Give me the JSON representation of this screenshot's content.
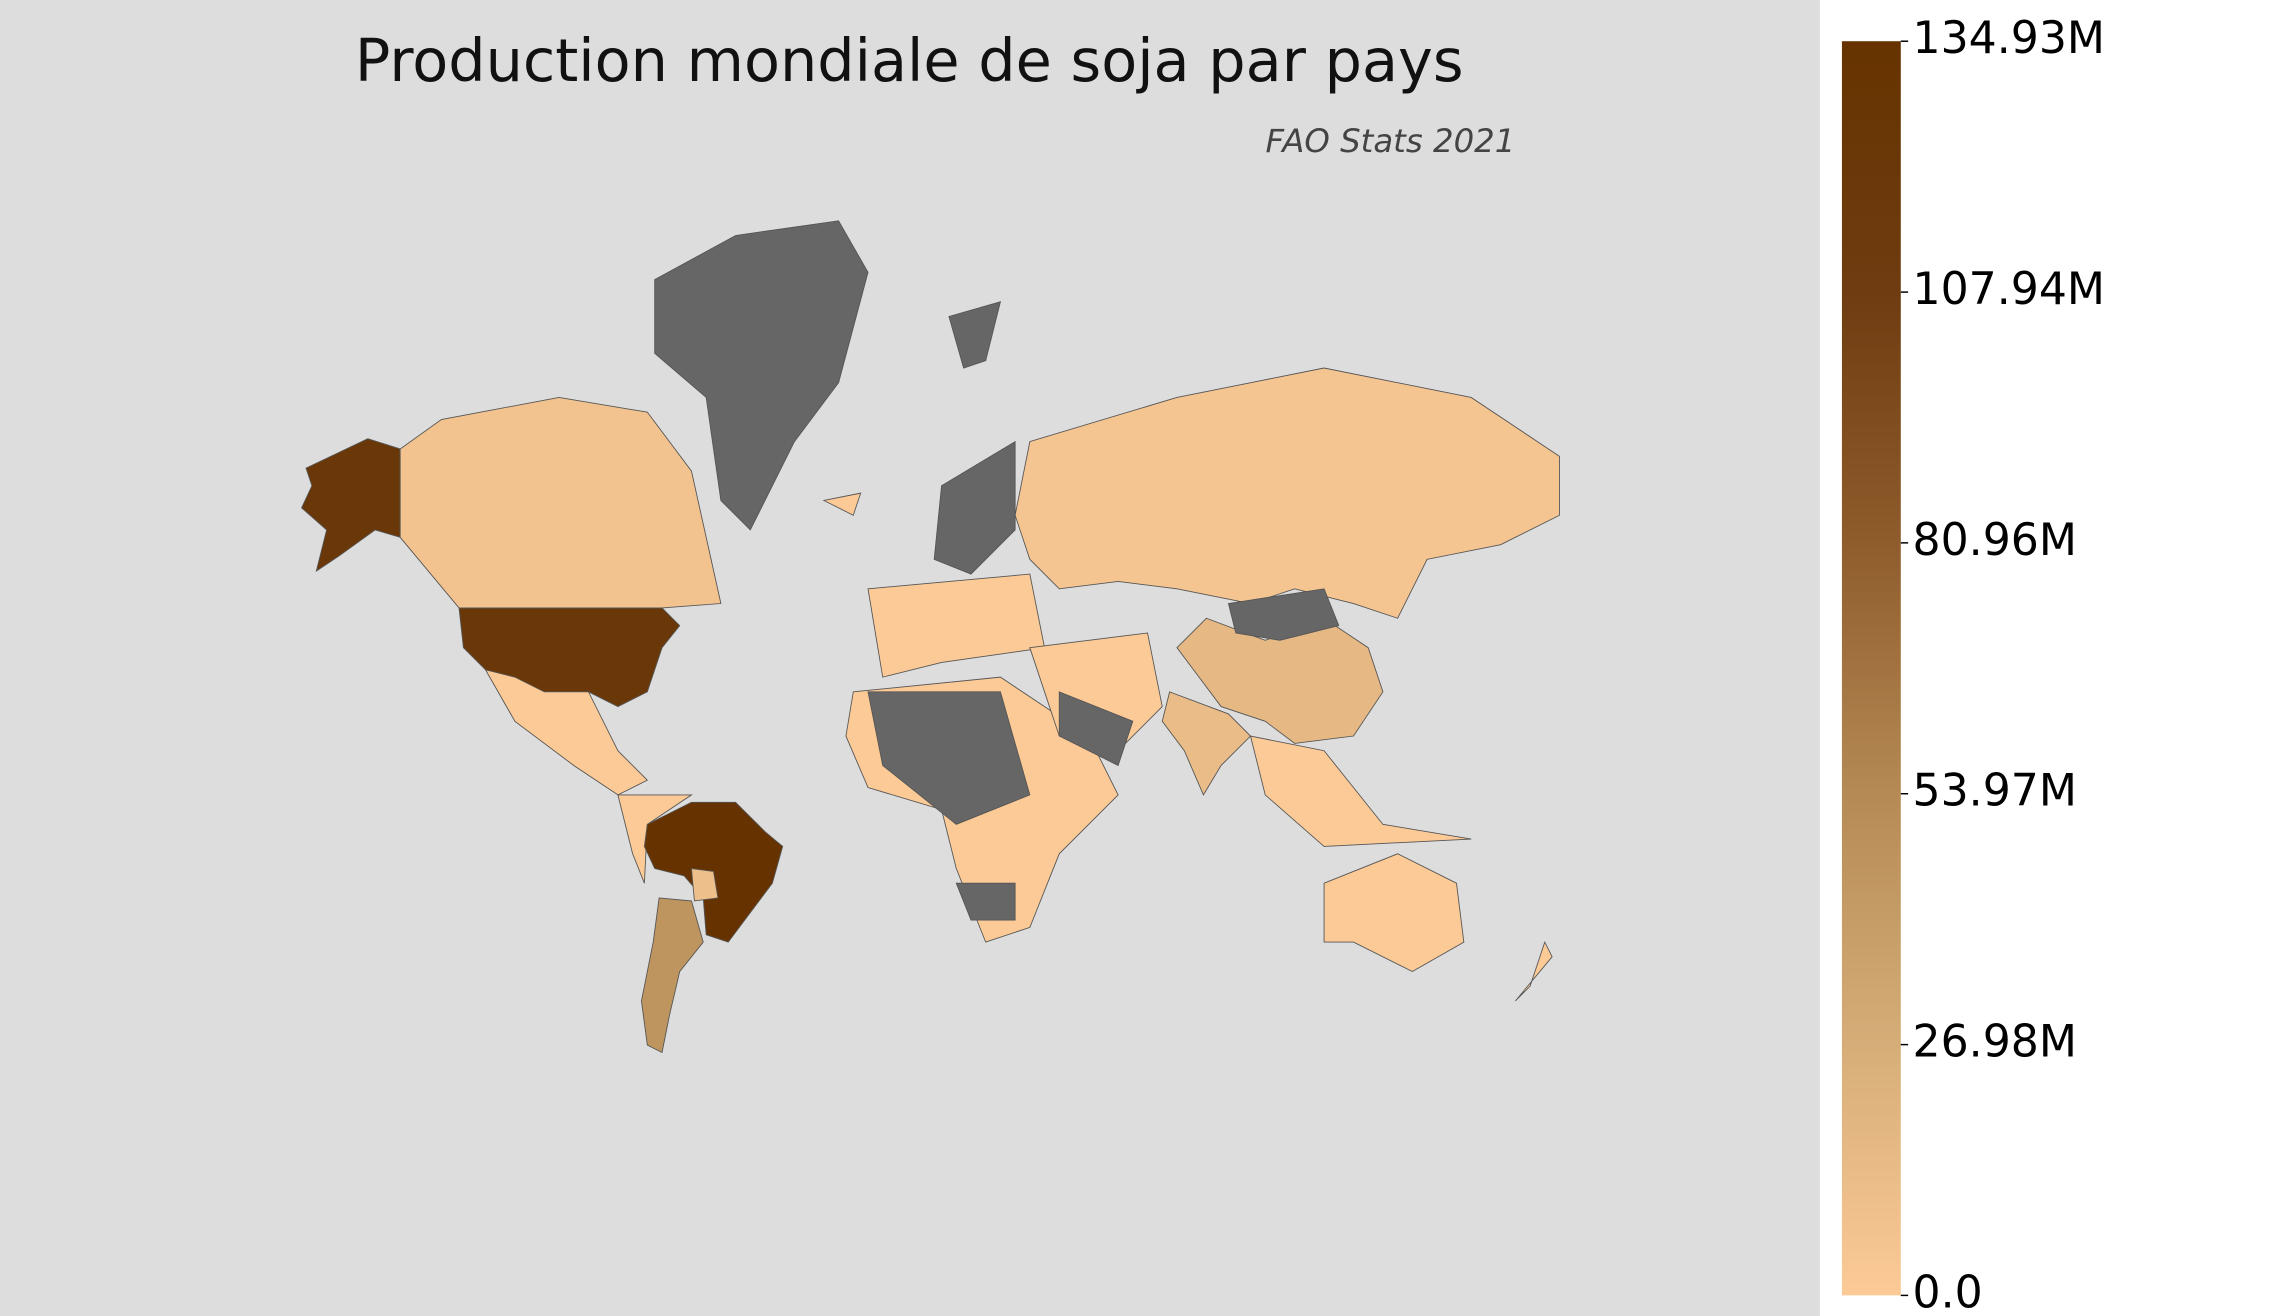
{
  "chart_data": {
    "type": "choropleth",
    "title": "Production mondiale de soja par pays",
    "subtitle": "FAO Stats 2021",
    "values": [
      134930000,
      120710000,
      120710000,
      46220000,
      16400000,
      12610000,
      10540000,
      6270000,
      4760000
    ],
    "colormap": [
      "#fcca96",
      "#d6ad78",
      "#b58a55",
      "#8f5c2c",
      "#6e3c10",
      "#663300"
    ],
    "no_data_color": "#666666",
    "ylim": [
      0,
      134930000
    ],
    "yticks": [
      {
        "value": 0,
        "label": "0.0"
      },
      {
        "value": 26980000,
        "label": "26.98M"
      },
      {
        "value": 53970000,
        "label": "53.97M"
      },
      {
        "value": 80960000,
        "label": "80.96M"
      },
      {
        "value": 107940000,
        "label": "107.94M"
      },
      {
        "value": 134930000,
        "label": "134.93M"
      }
    ]
  }
}
